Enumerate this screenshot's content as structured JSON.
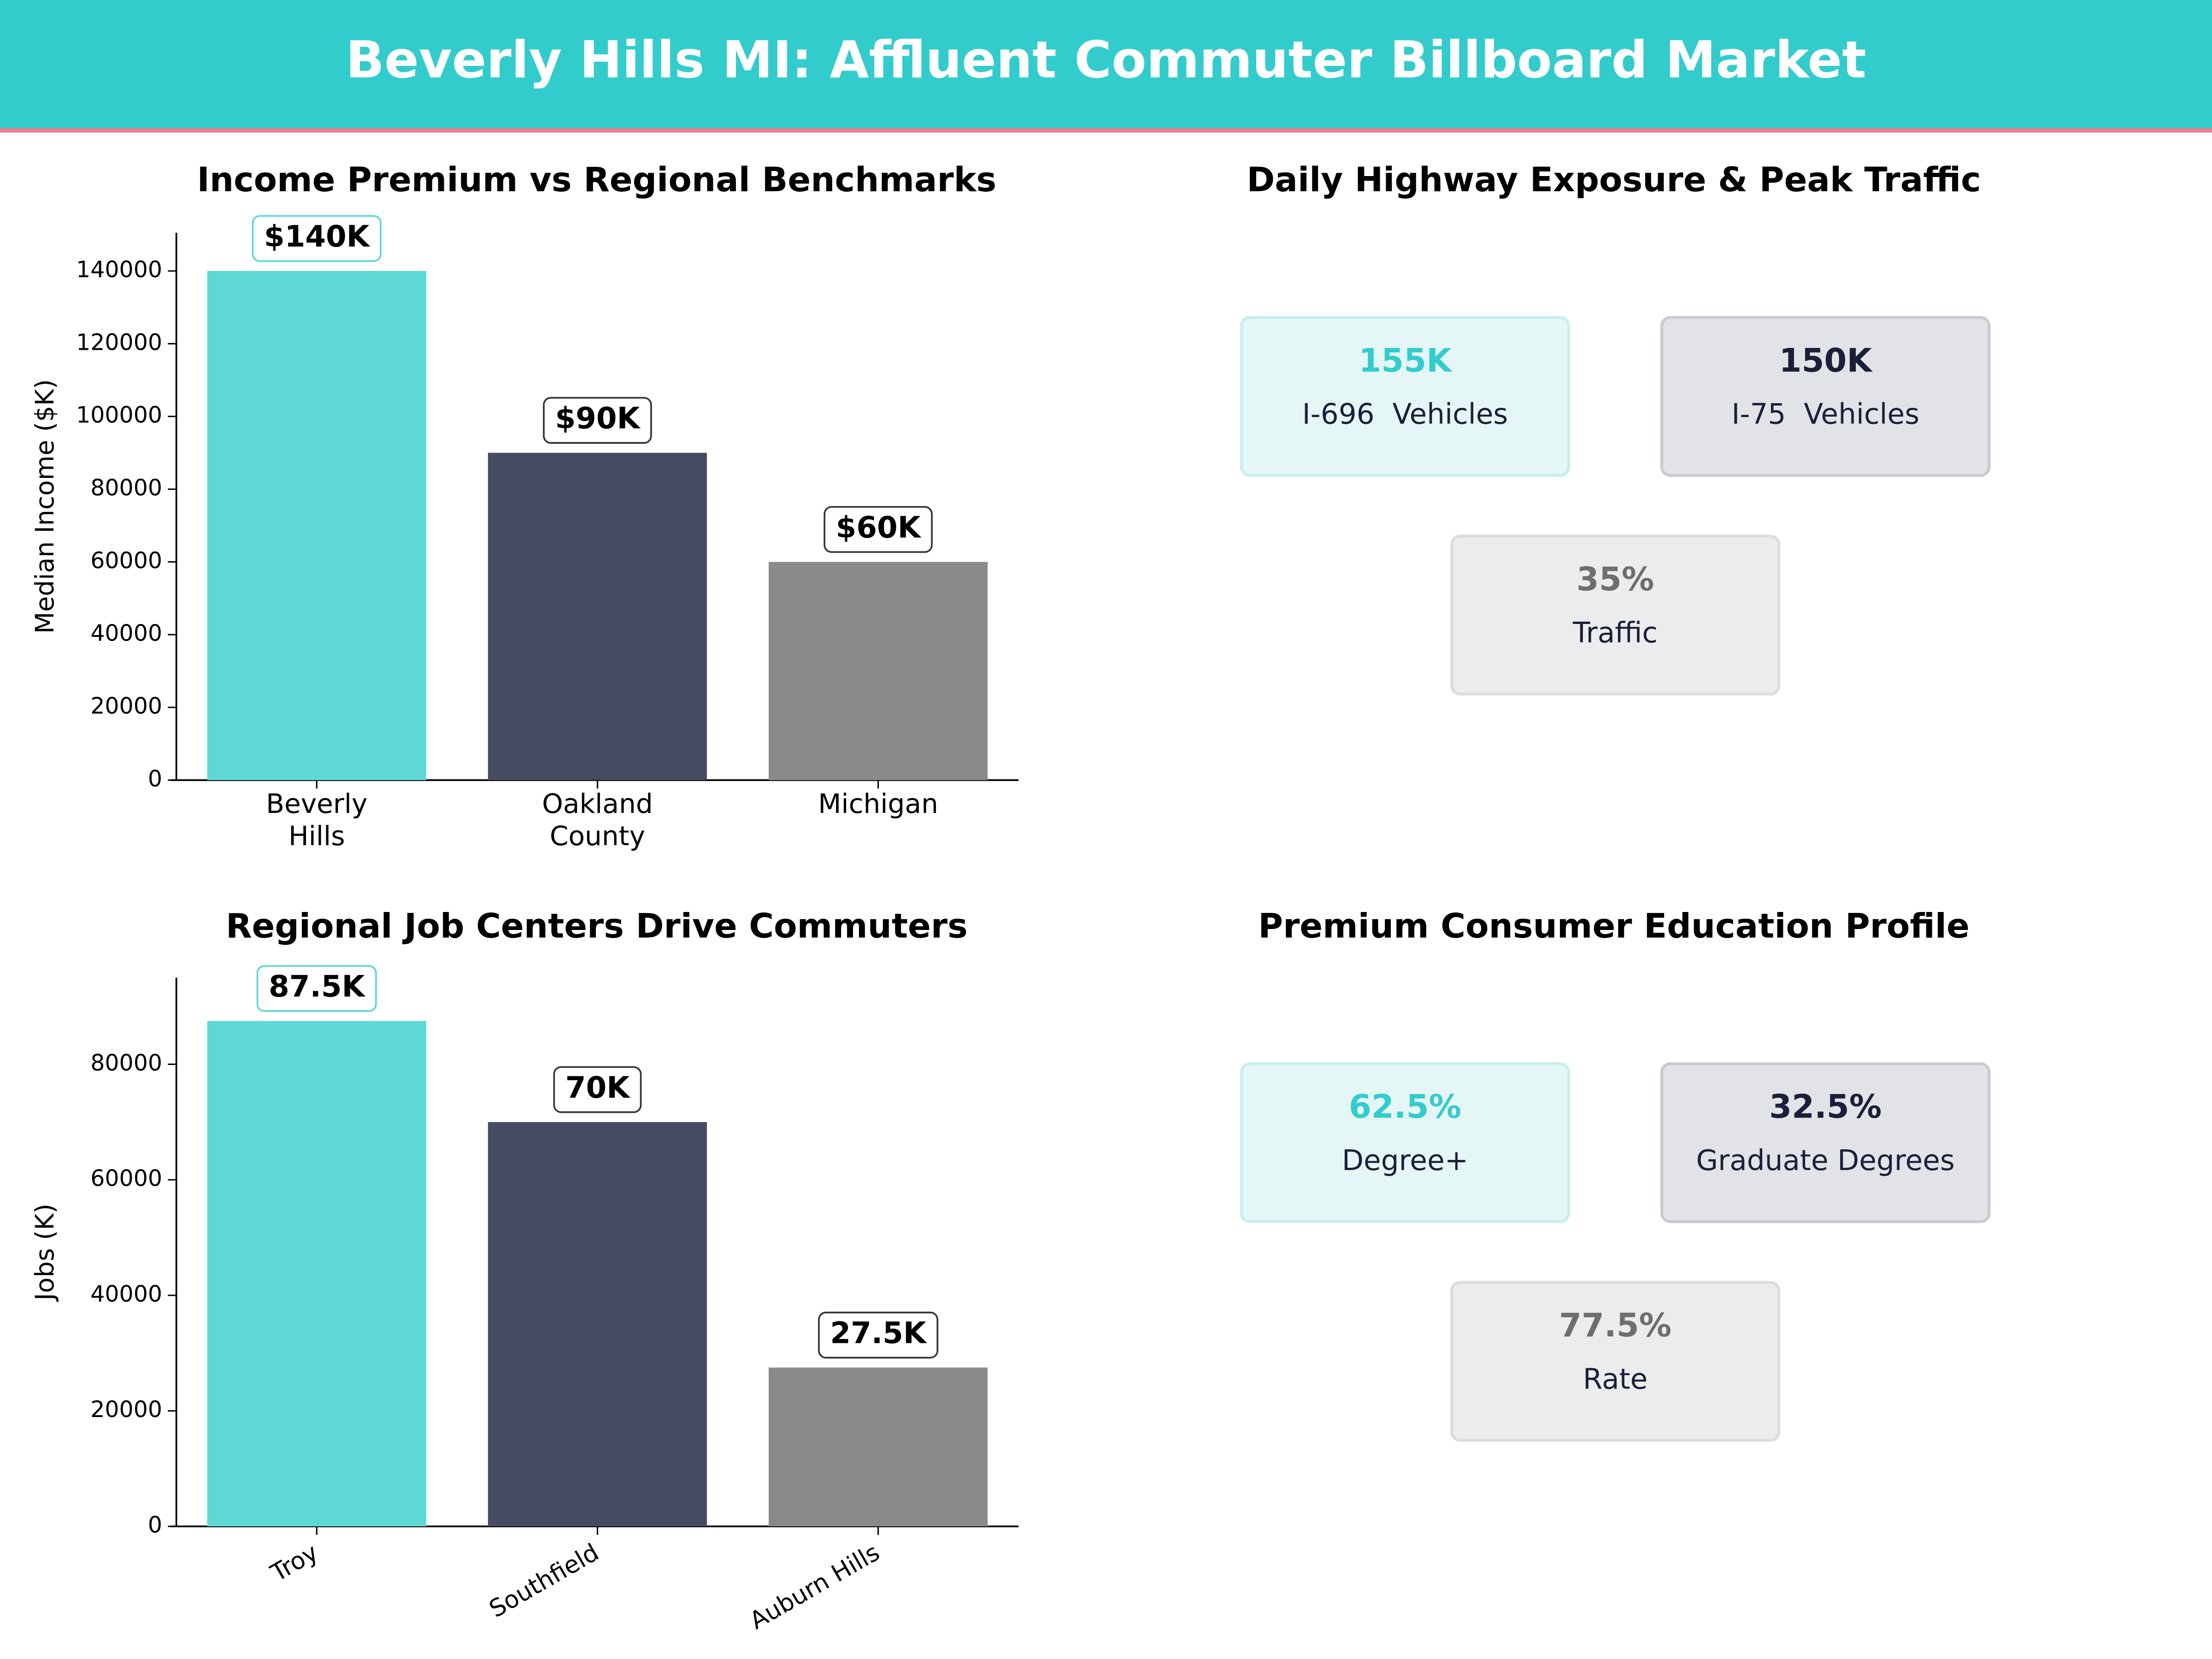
{
  "title": "Beverly Hills MI: Affluent Commuter Billboard Market",
  "chart_data": [
    {
      "type": "bar",
      "title": "Income Premium vs Regional Benchmarks",
      "ylabel": "Median Income ($K)",
      "categories": [
        "Beverly\nHills",
        "Oakland\nCounty",
        "Michigan"
      ],
      "values": [
        140000,
        90000,
        60000
      ],
      "value_labels": [
        "$140K",
        "$90K",
        "$60K"
      ],
      "colors": [
        "#5dd8d4",
        "#464b61",
        "#8a8a8a"
      ],
      "ylim": [
        0,
        150500
      ],
      "yticks": [
        0,
        20000,
        40000,
        60000,
        80000,
        100000,
        120000,
        140000
      ]
    },
    {
      "type": "kpi",
      "title": "Daily Highway Exposure & Peak Traffic",
      "cards": [
        {
          "value": "155K",
          "label": "I-696  Vehicles",
          "color": "#33cccc"
        },
        {
          "value": "150K",
          "label": "I-75  Vehicles",
          "color": "#1a1f3a"
        },
        {
          "value": "35%",
          "label": "Traffic",
          "color": "#6e6e6e"
        }
      ]
    },
    {
      "type": "bar",
      "title": "Regional Job Centers Drive Commuters",
      "ylabel": "Jobs (K)",
      "categories": [
        "Troy",
        "Southfield",
        "Auburn Hills"
      ],
      "values": [
        87500,
        70000,
        27500
      ],
      "value_labels": [
        "87.5K",
        "70K",
        "27.5K"
      ],
      "colors": [
        "#5dd8d4",
        "#464b61",
        "#8a8a8a"
      ],
      "ylim": [
        0,
        95000
      ],
      "yticks": [
        0,
        20000,
        40000,
        60000,
        80000
      ]
    },
    {
      "type": "kpi",
      "title": "Premium Consumer Education Profile",
      "cards": [
        {
          "value": "62.5%",
          "label": "Degree+",
          "color": "#33cccc"
        },
        {
          "value": "32.5%",
          "label": "Graduate Degrees",
          "color": "#1a1f3a"
        },
        {
          "value": "77.5%",
          "label": "Rate",
          "color": "#6e6e6e"
        }
      ]
    }
  ]
}
